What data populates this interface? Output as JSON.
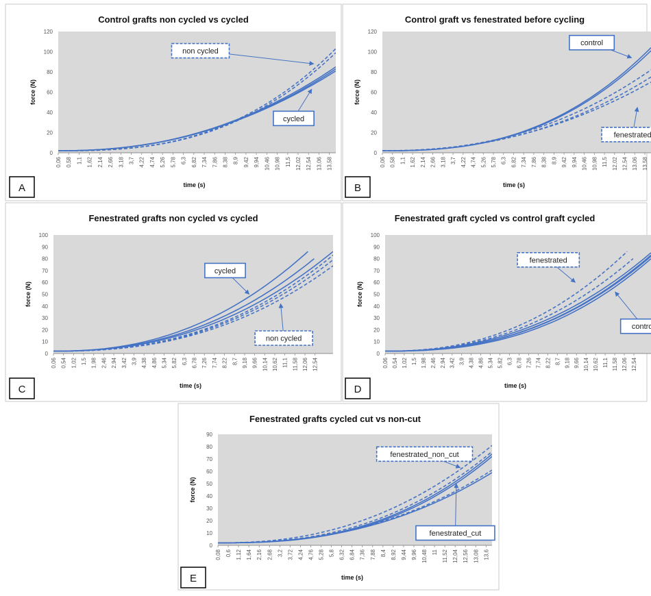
{
  "figure": {
    "colors": {
      "series": "#4472C4",
      "plot_bg": "#d9d9d9",
      "frame": "#999999",
      "text": "#111111",
      "tick": "#555555",
      "grid": "#bfbfbf"
    }
  },
  "chart_data": [
    {
      "panel": "A",
      "type": "line",
      "title": "Control grafts non cycled vs cycled",
      "xlabel": "time (s)",
      "ylabel": "force (N)",
      "ylim": [
        0,
        120
      ],
      "yticks": [
        "0",
        "20",
        "40",
        "60",
        "80",
        "100",
        "120"
      ],
      "xtick_labels": [
        "0,06",
        "0,58",
        "1,1",
        "1,62",
        "2,14",
        "2,66",
        "3,18",
        "3,7",
        "4,22",
        "4,74",
        "5,26",
        "5,78",
        "6,3",
        "6,82",
        "7,34",
        "7,86",
        "8,38",
        "8,9",
        "9,42",
        "9,94",
        "10,46",
        "10,98",
        "11,5",
        "12,02",
        "12,54",
        "13,06",
        "13,58"
      ],
      "x_range": [
        0.06,
        13.9
      ],
      "grid": false,
      "legend": "none",
      "series": [
        {
          "style": "dashed",
          "endpoint": 103,
          "shape": 2.7
        },
        {
          "style": "dashed",
          "endpoint": 99,
          "shape": 2.7
        },
        {
          "style": "solid",
          "endpoint": 85,
          "shape": 2.25
        },
        {
          "style": "solid",
          "endpoint": 83,
          "shape": 2.25
        },
        {
          "style": "solid",
          "endpoint": 81,
          "shape": 2.2
        }
      ],
      "annotations": [
        {
          "text": "non cycled",
          "style": "dashed",
          "box_x": 7.15,
          "box_y": 101,
          "arrow_to": [
            12.8,
            88
          ]
        },
        {
          "text": "cycled",
          "style": "solid",
          "box_x": 11.8,
          "box_y": 34,
          "arrow_to": [
            12.7,
            63
          ]
        }
      ]
    },
    {
      "panel": "B",
      "type": "line",
      "title": "Control graft vs fenestrated before cycling",
      "xlabel": "time (s)",
      "ylabel": "force (N)",
      "ylim": [
        0,
        120
      ],
      "yticks": [
        "0",
        "20",
        "40",
        "60",
        "80",
        "100",
        "120"
      ],
      "xtick_labels": [
        "0,06",
        "0,58",
        "1,1",
        "1,62",
        "2,14",
        "2,66",
        "3,18",
        "3,7",
        "4,22",
        "4,74",
        "5,26",
        "5,78",
        "6,3",
        "6,82",
        "7,34",
        "7,86",
        "8,38",
        "8,9",
        "9,42",
        "9,94",
        "10,46",
        "10,98",
        "11,5",
        "12,02",
        "12,54",
        "13,06",
        "13,58"
      ],
      "x_range": [
        0.06,
        13.9
      ],
      "grid": false,
      "legend": "none",
      "series": [
        {
          "style": "solid",
          "endpoint": 104,
          "shape": 2.6
        },
        {
          "style": "solid",
          "endpoint": 101,
          "shape": 2.6
        },
        {
          "style": "dashed",
          "endpoint": 82,
          "shape": 2.3
        },
        {
          "style": "dashed",
          "endpoint": 75,
          "shape": 2.3
        },
        {
          "style": "dashed",
          "endpoint": 70,
          "shape": 2.2
        }
      ],
      "annotations": [
        {
          "text": "control",
          "style": "solid",
          "box_x": 10.85,
          "box_y": 109,
          "arrow_to": [
            12.9,
            94
          ]
        },
        {
          "text": "fenestrated",
          "style": "dashed",
          "box_x": 12.95,
          "box_y": 18,
          "arrow_to": [
            13.2,
            45
          ]
        }
      ]
    },
    {
      "panel": "C",
      "type": "line",
      "title": "Fenestrated grafts non cycled vs cycled",
      "xlabel": "time (s)",
      "ylabel": "force (N)",
      "ylim": [
        0,
        100
      ],
      "yticks": [
        "0",
        "10",
        "20",
        "30",
        "40",
        "50",
        "60",
        "70",
        "80",
        "90",
        "100"
      ],
      "xtick_labels": [
        "0,06",
        "0,54",
        "1,02",
        "1,5",
        "1,98",
        "2,46",
        "2,94",
        "3,42",
        "3,9",
        "4,38",
        "4,86",
        "5,34",
        "5,82",
        "6,3",
        "6,78",
        "7,26",
        "7,74",
        "8,22",
        "8,7",
        "9,18",
        "9,66",
        "10,14",
        "10,62",
        "11,1",
        "11,58",
        "12,06",
        "12,54"
      ],
      "x_range": [
        0.06,
        13.4
      ],
      "grid": false,
      "legend": "none",
      "series": [
        {
          "style": "solid",
          "endpoint": 86,
          "end_x": 12.2,
          "shape": 2.3
        },
        {
          "style": "solid",
          "endpoint": 80,
          "end_x": 12.5,
          "shape": 2.3
        },
        {
          "style": "solid",
          "endpoint": 86,
          "end_x": 13.4,
          "shape": 2.3
        },
        {
          "style": "dashed",
          "endpoint": 83,
          "end_x": 13.4,
          "shape": 2.4
        },
        {
          "style": "dashed",
          "endpoint": 79,
          "end_x": 13.4,
          "shape": 2.4
        },
        {
          "style": "dashed",
          "endpoint": 74,
          "end_x": 13.4,
          "shape": 2.4
        }
      ],
      "annotations": [
        {
          "text": "cycled",
          "style": "solid",
          "box_x": 8.25,
          "box_y": 70,
          "arrow_to": [
            9.4,
            50
          ]
        },
        {
          "text": "non cycled",
          "style": "dashed",
          "box_x": 11.05,
          "box_y": 13,
          "arrow_to": [
            10.9,
            42
          ]
        }
      ]
    },
    {
      "panel": "D",
      "type": "line",
      "title": "Fenestrated graft cycled vs control graft cycled",
      "xlabel": "time (s)",
      "ylabel": "force (N)",
      "ylim": [
        0,
        100
      ],
      "yticks": [
        "0",
        "10",
        "20",
        "30",
        "40",
        "50",
        "60",
        "70",
        "80",
        "90",
        "100"
      ],
      "xtick_labels": [
        "0,06",
        "0,54",
        "1,02",
        "1,5",
        "1,98",
        "2,46",
        "2,94",
        "3,42",
        "3,9",
        "4,38",
        "4,86",
        "5,34",
        "5,82",
        "6,3",
        "6,78",
        "7,26",
        "7,74",
        "8,22",
        "8,7",
        "9,18",
        "9,66",
        "10,14",
        "10,62",
        "11,1",
        "11,58",
        "12,06",
        "12,54"
      ],
      "x_range": [
        0.06,
        13.4
      ],
      "grid": false,
      "legend": "none",
      "series": [
        {
          "style": "dashed",
          "endpoint": 86,
          "end_x": 12.2,
          "shape": 2.3
        },
        {
          "style": "dashed",
          "endpoint": 80,
          "end_x": 12.5,
          "shape": 2.3
        },
        {
          "style": "solid",
          "endpoint": 85,
          "end_x": 13.4,
          "shape": 2.3
        },
        {
          "style": "solid",
          "endpoint": 83,
          "end_x": 13.4,
          "shape": 2.4
        },
        {
          "style": "solid",
          "endpoint": 82,
          "end_x": 13.4,
          "shape": 2.4
        },
        {
          "style": "solid",
          "endpoint": 80,
          "end_x": 13.4,
          "shape": 2.5
        }
      ],
      "annotations": [
        {
          "text": "fenestrated",
          "style": "dashed",
          "box_x": 8.25,
          "box_y": 79,
          "arrow_to": [
            9.6,
            60
          ]
        },
        {
          "text": "control",
          "style": "solid",
          "box_x": 13.0,
          "box_y": 23,
          "arrow_to": [
            11.6,
            52
          ]
        }
      ]
    },
    {
      "panel": "E",
      "type": "line",
      "title": "Fenestrated grafts cycled cut vs non-cut",
      "xlabel": "time (s)",
      "ylabel": "force (N)",
      "ylim": [
        0,
        90
      ],
      "yticks": [
        "0",
        "10",
        "20",
        "30",
        "40",
        "50",
        "60",
        "70",
        "80",
        "90"
      ],
      "xtick_labels": [
        "0,08",
        "0,6",
        "1,12",
        "1,64",
        "2,16",
        "2,68",
        "3,2",
        "3,72",
        "4,24",
        "4,76",
        "5,28",
        "5,8",
        "6,32",
        "6,84",
        "7,36",
        "7,88",
        "8,4",
        "8,92",
        "9,44",
        "9,96",
        "10,48",
        "11",
        "11,52",
        "12,04",
        "12,56",
        "13,08",
        "13,6"
      ],
      "x_range": [
        0.08,
        13.9
      ],
      "grid": false,
      "legend": "none",
      "series": [
        {
          "style": "dashed",
          "endpoint": 81,
          "shape": 2.3
        },
        {
          "style": "dashed",
          "endpoint": 76,
          "shape": 2.5
        },
        {
          "style": "solid",
          "endpoint": 74,
          "shape": 2.6
        },
        {
          "style": "solid",
          "endpoint": 72,
          "shape": 2.65
        },
        {
          "style": "solid",
          "endpoint": 59,
          "shape": 2.4
        },
        {
          "style": "dashed",
          "endpoint": 61,
          "shape": 2.4
        }
      ],
      "annotations": [
        {
          "text": "fenestrated_non_cut",
          "style": "dashed",
          "box_x": 10.5,
          "box_y": 74,
          "arrow_to": [
            12.3,
            63
          ]
        },
        {
          "text": "fenestrated_cut",
          "style": "solid",
          "box_x": 12.05,
          "box_y": 10,
          "arrow_to": [
            12.1,
            50
          ]
        }
      ]
    }
  ]
}
